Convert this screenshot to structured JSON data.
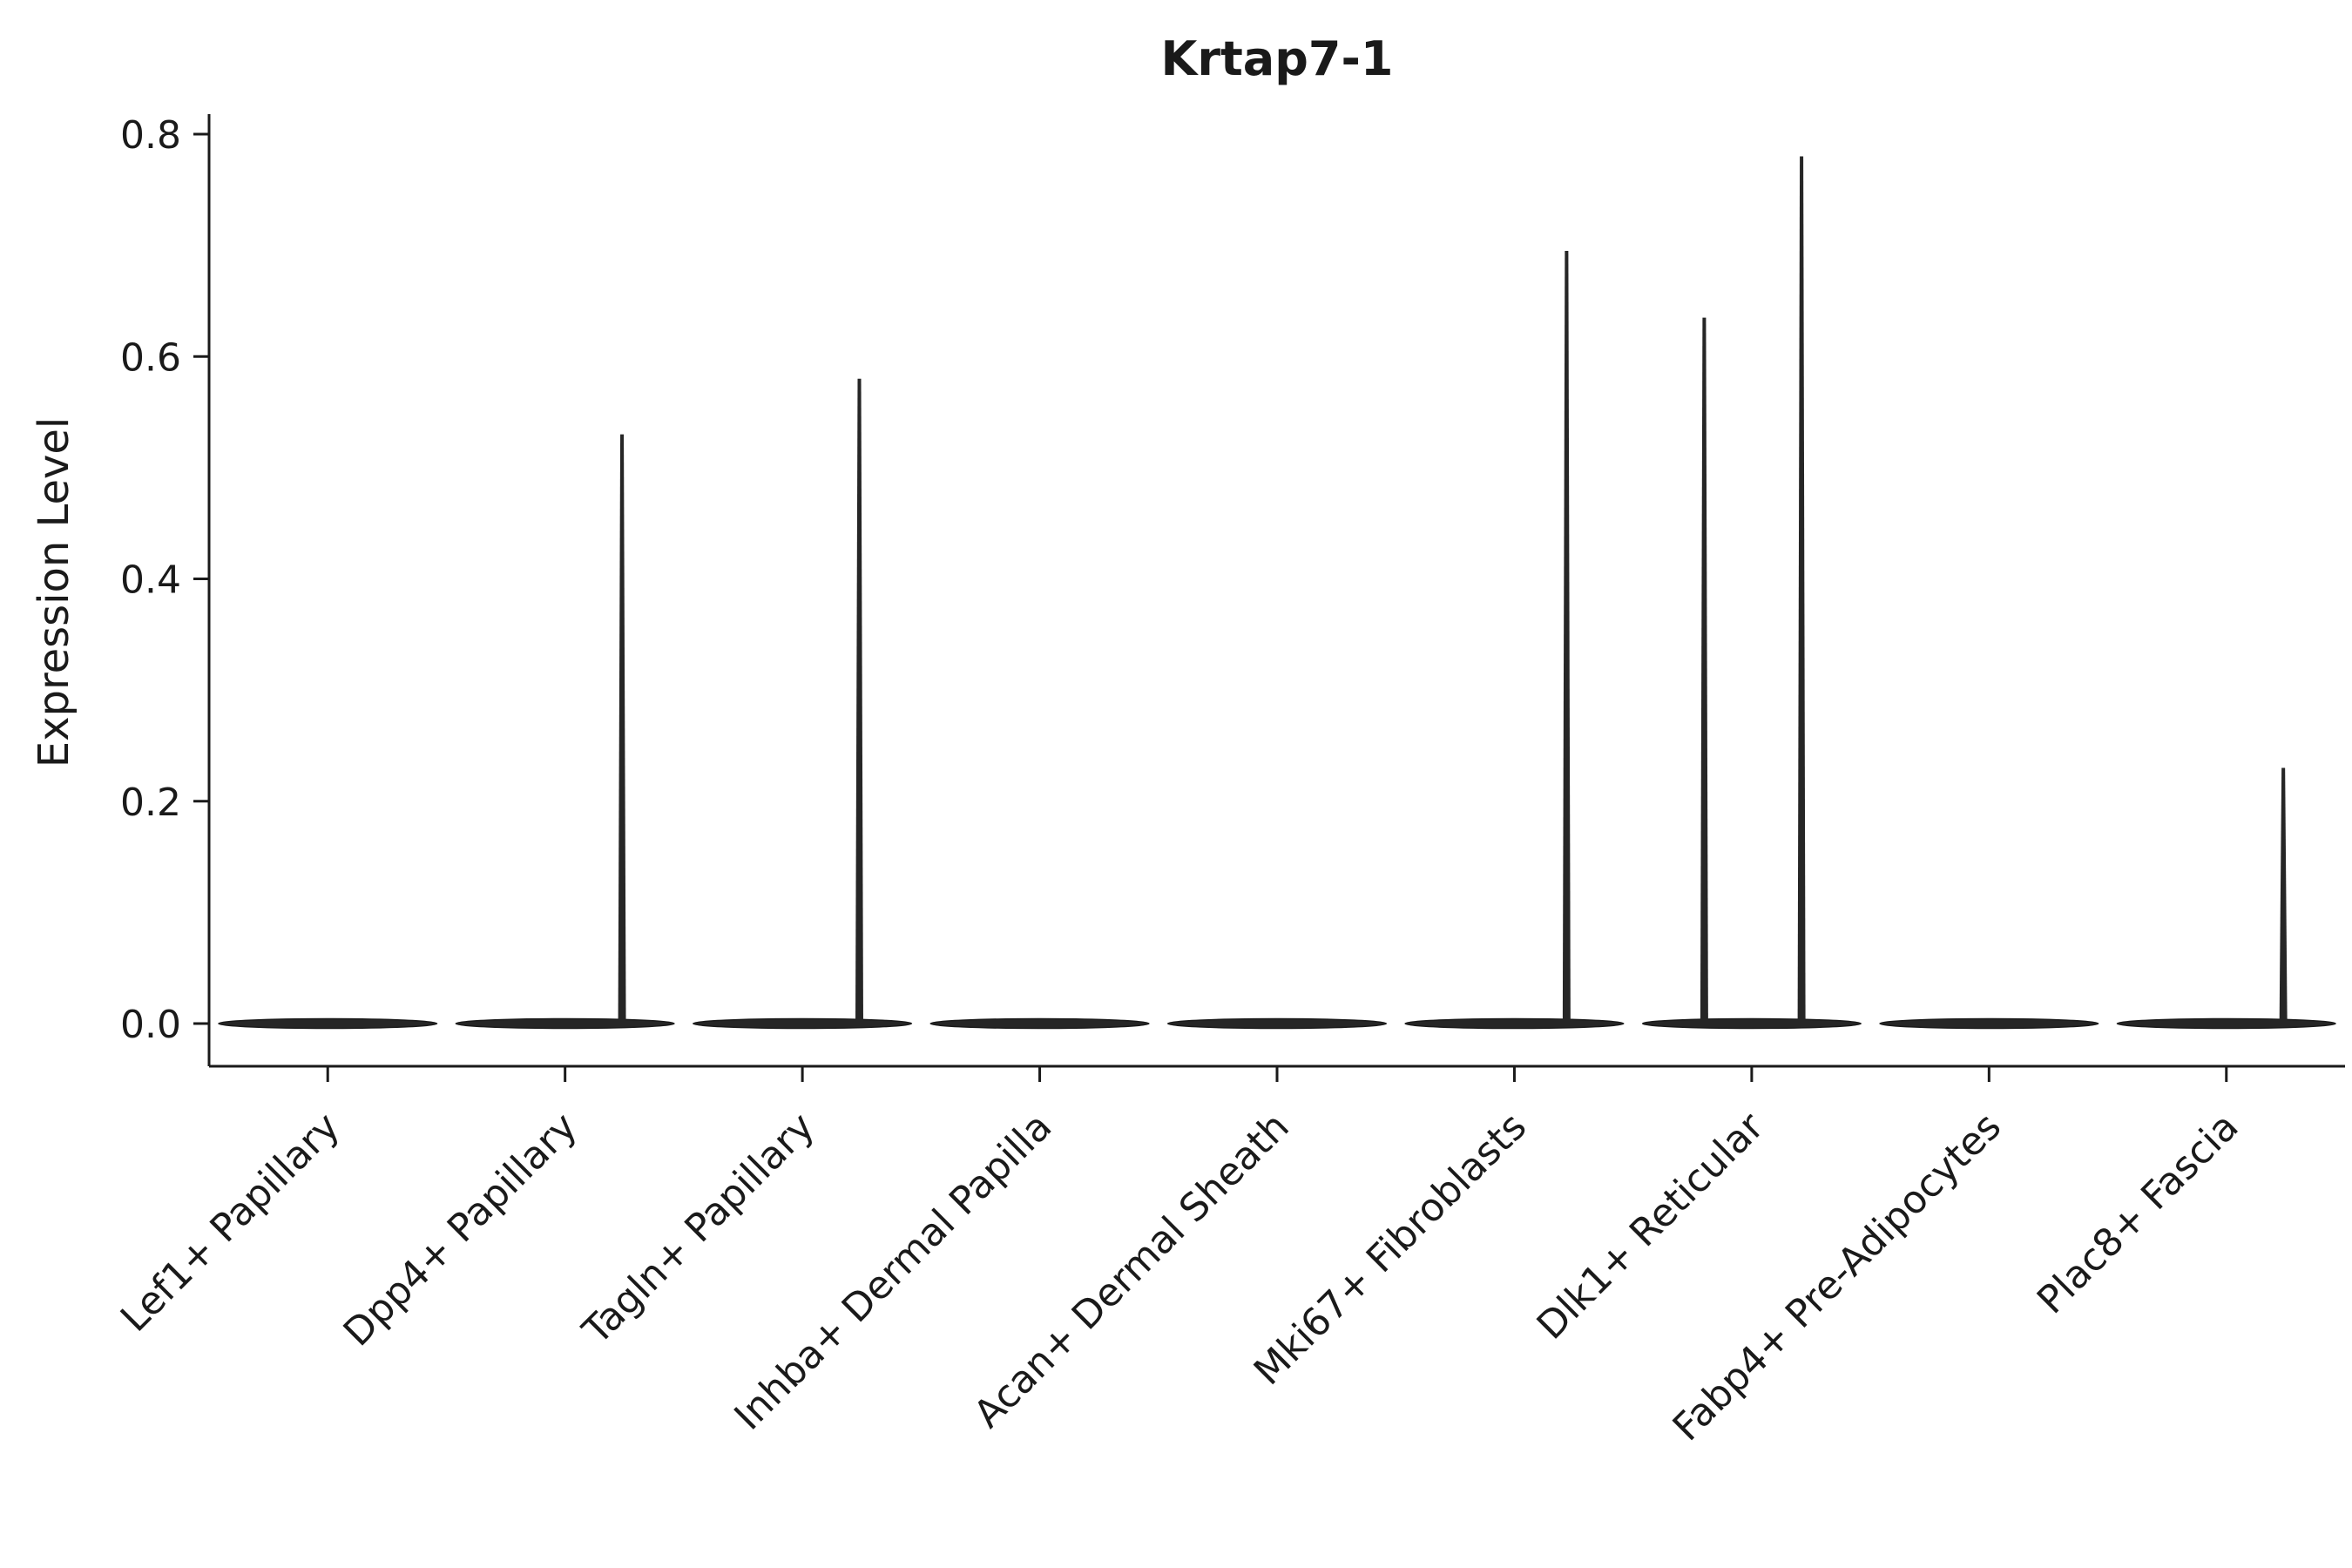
{
  "chart_data": {
    "type": "violin",
    "title": "Krtap7-1",
    "xlabel": "",
    "ylabel": "Expression Level",
    "ylim": [
      0,
      0.8
    ],
    "yticks": [
      0,
      0.2,
      0.4,
      0.6,
      0.8
    ],
    "ytick_labels": [
      "0.0",
      "0.2",
      "0.4",
      "0.6",
      "0.8"
    ],
    "grid": false,
    "legend": "none",
    "categories": [
      "Lef1+ Papillary",
      "Dpp4+ Papillary",
      "Tagln+ Papillary",
      "Inhba+ Dermal Papilla",
      "Acan+ Dermal Sheath",
      "Mki67+ Fibroblasts",
      "Dlk1+ Reticular",
      "Fabp4+ Pre-Adipocytes",
      "Plac8+ Fascia"
    ],
    "violins": [
      {
        "category": "Lef1+ Papillary",
        "base_value": 0,
        "spikes": []
      },
      {
        "category": "Dpp4+ Papillary",
        "base_value": 0,
        "spikes": [
          {
            "value": 0.53,
            "offset": 0.24
          }
        ]
      },
      {
        "category": "Tagln+ Papillary",
        "base_value": 0,
        "spikes": [
          {
            "value": 0.58,
            "offset": 0.24
          }
        ]
      },
      {
        "category": "Inhba+ Dermal Papilla",
        "base_value": 0,
        "spikes": []
      },
      {
        "category": "Acan+ Dermal Sheath",
        "base_value": 0,
        "spikes": []
      },
      {
        "category": "Mki67+ Fibroblasts",
        "base_value": 0,
        "spikes": [
          {
            "value": 0.695,
            "offset": 0.22
          }
        ]
      },
      {
        "category": "Dlk1+ Reticular",
        "base_value": 0,
        "spikes": [
          {
            "value": 0.635,
            "offset": -0.2
          },
          {
            "value": 0.78,
            "offset": 0.21
          }
        ]
      },
      {
        "category": "Fabp4+ Pre-Adipocytes",
        "base_value": 0,
        "spikes": []
      },
      {
        "category": "Plac8+ Fascia",
        "base_value": 0,
        "spikes": [
          {
            "value": 0.23,
            "offset": 0.24
          }
        ]
      }
    ],
    "colors": {
      "line": "#1a1a1a",
      "fill": "#262626",
      "background": "#ffffff"
    }
  }
}
